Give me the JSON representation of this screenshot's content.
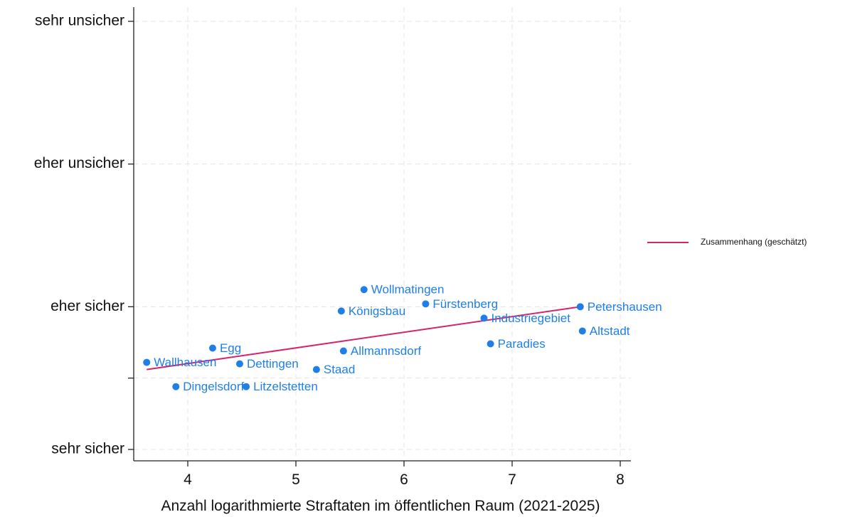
{
  "chart_data": {
    "type": "scatter",
    "xlabel": "Anzahl logarithmierte Straftaten im öffentlichen Raum (2021-2025)",
    "ylabel": "",
    "xlim": [
      3.5,
      8.1
    ],
    "ylim": [
      1,
      4
    ],
    "x_ticks": [
      4,
      5,
      6,
      7,
      8
    ],
    "y_ticks": [
      {
        "value": 1,
        "label": "sehr sicher"
      },
      {
        "value": 1.5,
        "label": ""
      },
      {
        "value": 2,
        "label": "eher sicher"
      },
      {
        "value": 3,
        "label": "eher unsicher"
      },
      {
        "value": 4,
        "label": "sehr unsicher"
      }
    ],
    "grid": true,
    "legend_position": "right",
    "points": [
      {
        "label": "Wallhausen",
        "x": 3.62,
        "y": 1.61
      },
      {
        "label": "Dingelsdorf",
        "x": 3.89,
        "y": 1.44
      },
      {
        "label": "Egg",
        "x": 4.23,
        "y": 1.71
      },
      {
        "label": "Dettingen",
        "x": 4.48,
        "y": 1.6
      },
      {
        "label": "Litzelstetten",
        "x": 4.54,
        "y": 1.44
      },
      {
        "label": "Staad",
        "x": 5.19,
        "y": 1.56
      },
      {
        "label": "Allmannsdorf",
        "x": 5.44,
        "y": 1.69
      },
      {
        "label": "Königsbau",
        "x": 5.42,
        "y": 1.97
      },
      {
        "label": "Wollmatingen",
        "x": 5.63,
        "y": 2.12
      },
      {
        "label": "Fürstenberg",
        "x": 6.2,
        "y": 2.02
      },
      {
        "label": "Industriegebiet",
        "x": 6.74,
        "y": 1.92
      },
      {
        "label": "Paradies",
        "x": 6.8,
        "y": 1.74
      },
      {
        "label": "Petershausen",
        "x": 7.63,
        "y": 2.0
      },
      {
        "label": "Altstadt",
        "x": 7.65,
        "y": 1.83
      }
    ],
    "series": [
      {
        "name": "Zusammenhang (geschätzt)",
        "type": "line",
        "color": "#d6246a",
        "x": [
          3.62,
          7.63
        ],
        "y": [
          1.56,
          2.0
        ]
      }
    ],
    "point_color": "#1f7fe6"
  }
}
